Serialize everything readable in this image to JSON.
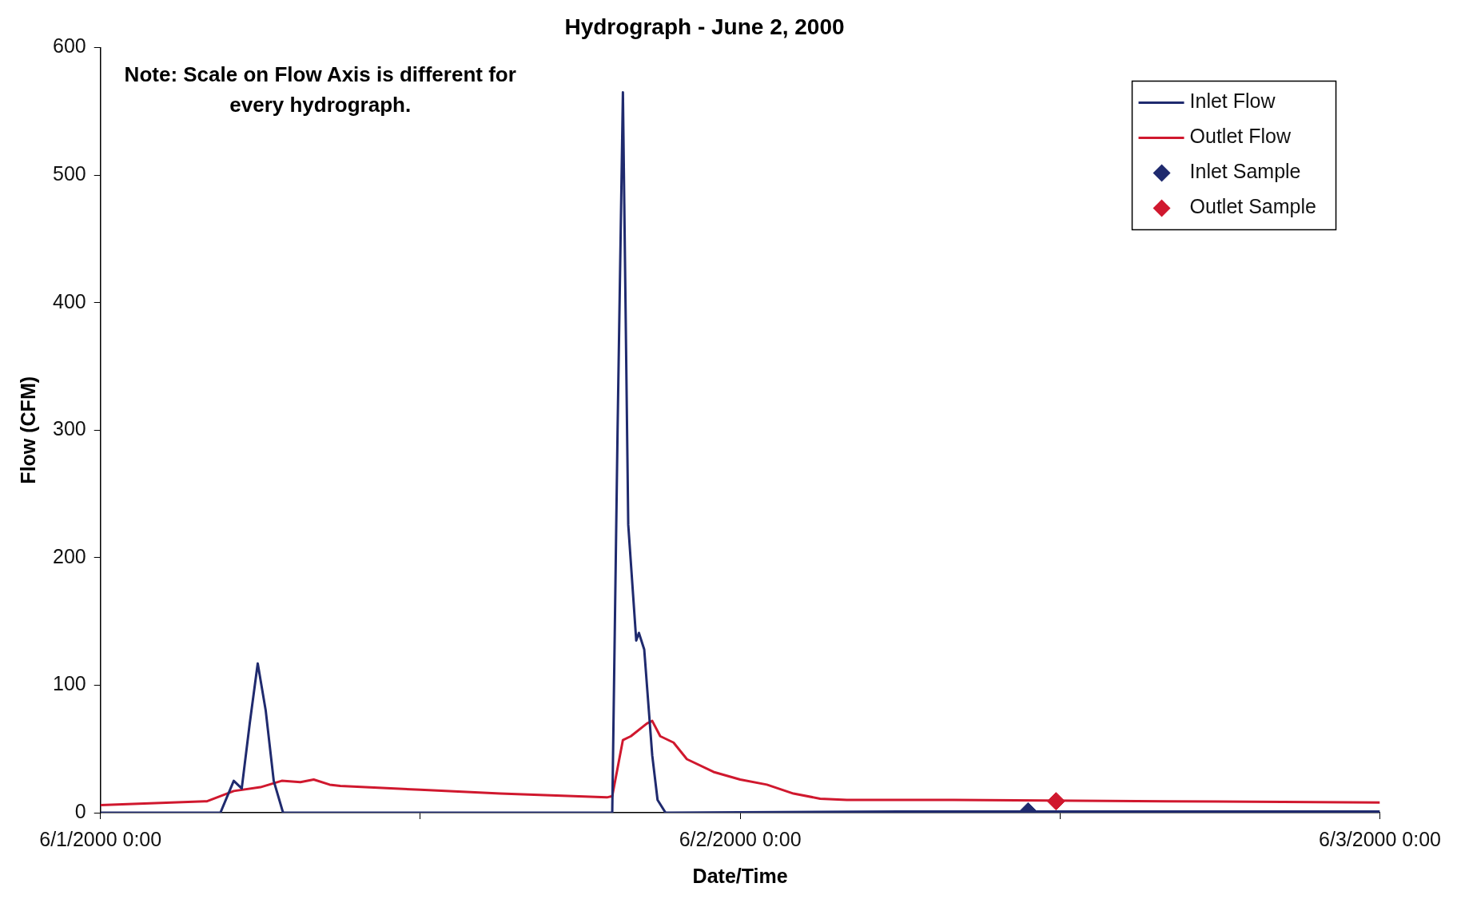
{
  "chart_data": {
    "type": "line",
    "title": "Hydrograph - June 2, 2000",
    "xlabel": "Date/Time",
    "ylabel": "Flow (CFM)",
    "annotations": [
      "Note: Scale on Flow Axis is different for every hydrograph."
    ],
    "xlim": [
      "2000-06-01T00:00",
      "2000-06-03T00:00"
    ],
    "xticks": [
      {
        "value": "2000-06-01T00:00",
        "label": "6/1/2000 0:00"
      },
      {
        "value": "2000-06-01T12:00",
        "label": null
      },
      {
        "value": "2000-06-02T00:00",
        "label": "6/2/2000 0:00"
      },
      {
        "value": "2000-06-02T12:00",
        "label": null
      },
      {
        "value": "2000-06-03T00:00",
        "label": "6/3/2000 0:00"
      }
    ],
    "ylim": [
      0,
      600
    ],
    "yticks": [
      0,
      100,
      200,
      300,
      400,
      500,
      600
    ],
    "grid": false,
    "legend": "top right",
    "line_style": "solid",
    "series": [
      {
        "name": "Inlet Flow",
        "type": "line",
        "color": "#1f2a6e",
        "marker": "none",
        "x": [
          "2000-06-01T00:00",
          "2000-06-01T04:30",
          "2000-06-01T05:00",
          "2000-06-01T05:18",
          "2000-06-01T05:36",
          "2000-06-01T05:54",
          "2000-06-01T06:12",
          "2000-06-01T06:30",
          "2000-06-01T06:51",
          "2000-06-01T12:00",
          "2000-06-01T19:12",
          "2000-06-01T19:24",
          "2000-06-01T19:36",
          "2000-06-01T19:48",
          "2000-06-01T20:06",
          "2000-06-01T20:12",
          "2000-06-01T20:24",
          "2000-06-01T20:42",
          "2000-06-01T20:54",
          "2000-06-01T21:12",
          "2000-06-02T06:00",
          "2000-06-02T16:00",
          "2000-06-03T00:00"
        ],
        "values": [
          0,
          0,
          25,
          19,
          70,
          117,
          80,
          25,
          0,
          0,
          0,
          300,
          565,
          226,
          135,
          141,
          128,
          45,
          10,
          0,
          1,
          1,
          1
        ]
      },
      {
        "name": "Outlet Flow",
        "type": "line",
        "color": "#d0182e",
        "marker": "none",
        "x": [
          "2000-06-01T00:00",
          "2000-06-01T04:00",
          "2000-06-01T05:00",
          "2000-06-01T06:00",
          "2000-06-01T06:48",
          "2000-06-01T07:30",
          "2000-06-01T08:00",
          "2000-06-01T08:36",
          "2000-06-01T09:00",
          "2000-06-01T12:00",
          "2000-06-01T15:00",
          "2000-06-01T19:00",
          "2000-06-01T19:12",
          "2000-06-01T19:36",
          "2000-06-01T19:54",
          "2000-06-01T20:30",
          "2000-06-01T20:42",
          "2000-06-01T21:00",
          "2000-06-01T21:30",
          "2000-06-01T22:00",
          "2000-06-01T23:00",
          "2000-06-02T00:00",
          "2000-06-02T01:00",
          "2000-06-02T02:00",
          "2000-06-02T03:00",
          "2000-06-02T04:00",
          "2000-06-02T08:00",
          "2000-06-02T16:00",
          "2000-06-03T00:00"
        ],
        "values": [
          6,
          9,
          17,
          20,
          25,
          24,
          26,
          22,
          21,
          18,
          15,
          12,
          13,
          57,
          60,
          70,
          72,
          60,
          55,
          42,
          32,
          26,
          22,
          15,
          11,
          10,
          10,
          9,
          8
        ]
      },
      {
        "name": "Inlet Sample",
        "type": "scatter",
        "color": "#1f2a6e",
        "marker": "diamond",
        "x": [
          "2000-06-02T10:48"
        ],
        "values": [
          1
        ]
      },
      {
        "name": "Outlet Sample",
        "type": "scatter",
        "color": "#d0182e",
        "marker": "diamond",
        "x": [
          "2000-06-02T11:51"
        ],
        "values": [
          9
        ]
      }
    ]
  }
}
